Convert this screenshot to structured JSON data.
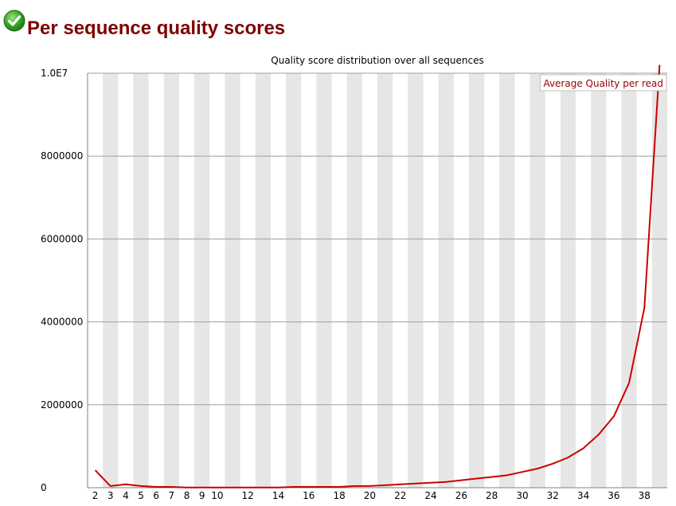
{
  "header": {
    "title": "Per sequence quality scores",
    "status_icon": "check-circle-icon",
    "status": "pass"
  },
  "colors": {
    "title": "#800000",
    "line": "#cc0000",
    "band": "#e6e6e6",
    "grid": "#a0a0a0",
    "legend_text": "#990000",
    "icon": "#2e9f1f"
  },
  "chart_data": {
    "type": "line",
    "title": "Quality score distribution over all sequences",
    "xlabel": "",
    "ylabel": "",
    "xlim": [
      2,
      39
    ],
    "ylim": [
      0,
      10000000
    ],
    "x_tick_labels": [
      "2",
      "3",
      "4",
      "5",
      "6",
      "7",
      "8",
      "9",
      "10",
      "12",
      "14",
      "16",
      "18",
      "20",
      "22",
      "24",
      "26",
      "28",
      "30",
      "32",
      "34",
      "36",
      "38"
    ],
    "y_tick_labels": [
      "0",
      "2000000",
      "4000000",
      "6000000",
      "8000000",
      "1.0E7"
    ],
    "y_ticks": [
      0,
      2000000,
      4000000,
      6000000,
      8000000,
      10000000
    ],
    "grid": true,
    "legend_position": "top-right",
    "x": [
      2,
      3,
      4,
      5,
      6,
      7,
      8,
      9,
      10,
      11,
      12,
      13,
      14,
      15,
      16,
      17,
      18,
      19,
      20,
      21,
      22,
      23,
      24,
      25,
      26,
      27,
      28,
      29,
      30,
      31,
      32,
      33,
      34,
      35,
      36,
      37,
      38,
      39
    ],
    "series": [
      {
        "name": "Average Quality per read",
        "values": [
          420000,
          40000,
          80000,
          40000,
          20000,
          20000,
          5000,
          5000,
          5000,
          5000,
          5000,
          5000,
          5000,
          20000,
          20000,
          20000,
          20000,
          40000,
          40000,
          60000,
          80000,
          100000,
          120000,
          140000,
          180000,
          220000,
          260000,
          300000,
          380000,
          460000,
          580000,
          730000,
          950000,
          1280000,
          1720000,
          2530000,
          4340000,
          10200000
        ]
      }
    ]
  }
}
